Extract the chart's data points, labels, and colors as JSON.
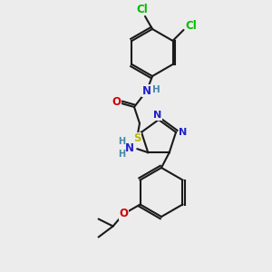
{
  "bg_color": "#ececec",
  "bond_color": "#1a1a1a",
  "atom_colors": {
    "Cl": "#00bb00",
    "N": "#2020cc",
    "O": "#cc0000",
    "S": "#bbbb00",
    "C": "#1a1a1a",
    "H": "#4488aa"
  }
}
